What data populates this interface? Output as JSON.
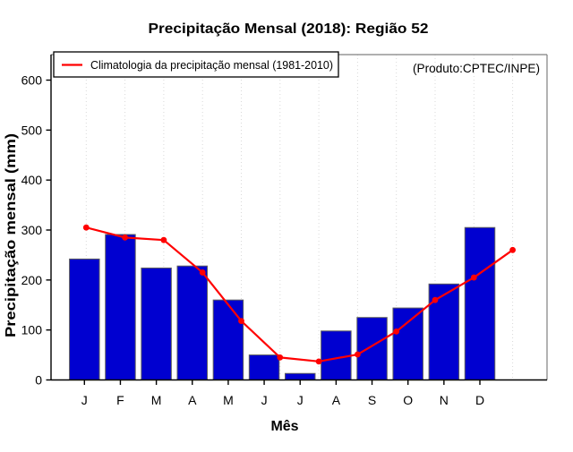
{
  "title": "Precipitação Mensal (2018): Região 52",
  "source_label": "(Produto:CPTEC/INPE)",
  "axes": {
    "x_label": "Mês",
    "y_label": "Precipitação mensal (mm)",
    "y_ticks": [
      0,
      100,
      200,
      300,
      400,
      500,
      600
    ]
  },
  "legend": {
    "label": "Climatologia da precipitação mensal (1981-2010)"
  },
  "colors": {
    "bar": "#0000d0",
    "bar_border": "#606060",
    "line": "#ff0000",
    "grid": "#d9d9d9",
    "frame": "#808080",
    "axis": "#000000",
    "source_text": "#888888"
  },
  "chart_data": {
    "type": "bar",
    "title": "Precipitação Mensal (2018): Região 52",
    "categories": [
      "J",
      "F",
      "M",
      "A",
      "M",
      "J",
      "J",
      "A",
      "S",
      "O",
      "N",
      "D"
    ],
    "series": [
      {
        "name": "Precipitação Mensal (2018)",
        "type": "bar",
        "values": [
          242,
          291,
          224,
          228,
          160,
          50,
          13,
          98,
          125,
          144,
          192,
          305
        ]
      },
      {
        "name": "Climatologia da precipitação mensal (1981-2010)",
        "type": "line",
        "values": [
          305,
          285,
          280,
          215,
          118,
          45,
          37,
          51,
          97,
          160,
          205,
          260
        ]
      }
    ],
    "xlabel": "Mês",
    "ylabel": "Precipitação mensal (mm)",
    "ylim": [
      0,
      650
    ],
    "y_ticks": [
      0,
      100,
      200,
      300,
      400,
      500,
      600
    ],
    "grid": "vertical-dotted",
    "legend_position": "top-left",
    "annotations": [
      "(Produto:CPTEC/INPE)"
    ]
  }
}
